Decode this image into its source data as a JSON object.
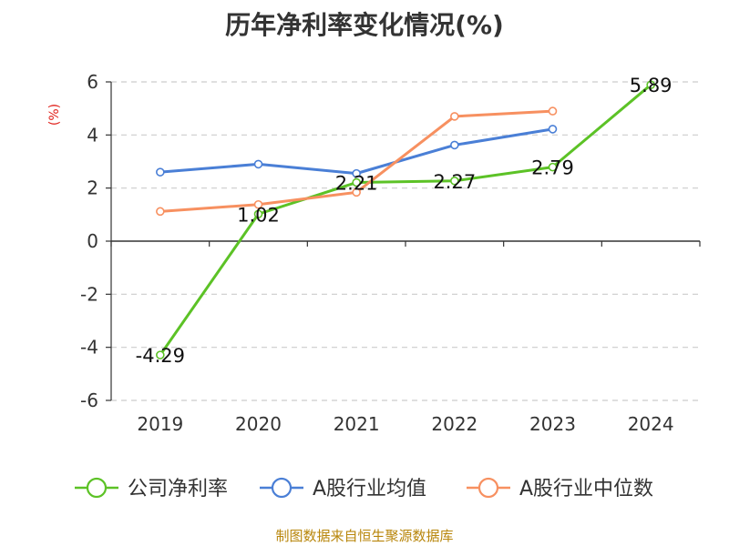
{
  "title": "历年净利率变化情况(%)",
  "source": "制图数据来自恒生聚源数据库",
  "chart_data": {
    "type": "line",
    "title": "历年净利率变化情况(%)",
    "ylabel": "(%)",
    "xlabel": "",
    "categories": [
      "2019",
      "2020",
      "2021",
      "2022",
      "2023",
      "2024"
    ],
    "ylim": [
      -6,
      6
    ],
    "yticks": [
      6,
      4,
      2,
      0,
      -2,
      -4,
      -6
    ],
    "grid": true,
    "legend_position": "bottom",
    "series": [
      {
        "name": "公司净利率",
        "color": "#5cc226",
        "values": [
          -4.29,
          1.02,
          2.21,
          2.27,
          2.79,
          5.89
        ],
        "show_labels": true
      },
      {
        "name": "A股行业均值",
        "color": "#4a7fd6",
        "values": [
          2.6,
          2.9,
          2.55,
          3.62,
          4.22,
          null
        ],
        "show_labels": false
      },
      {
        "name": "A股行业中位数",
        "color": "#f79060",
        "values": [
          1.12,
          1.38,
          1.84,
          4.7,
          4.9,
          null
        ],
        "show_labels": false
      }
    ],
    "data_labels": [
      "-4.29",
      "1.02",
      "2.21",
      "2.27",
      "2.79",
      "5.89"
    ]
  }
}
